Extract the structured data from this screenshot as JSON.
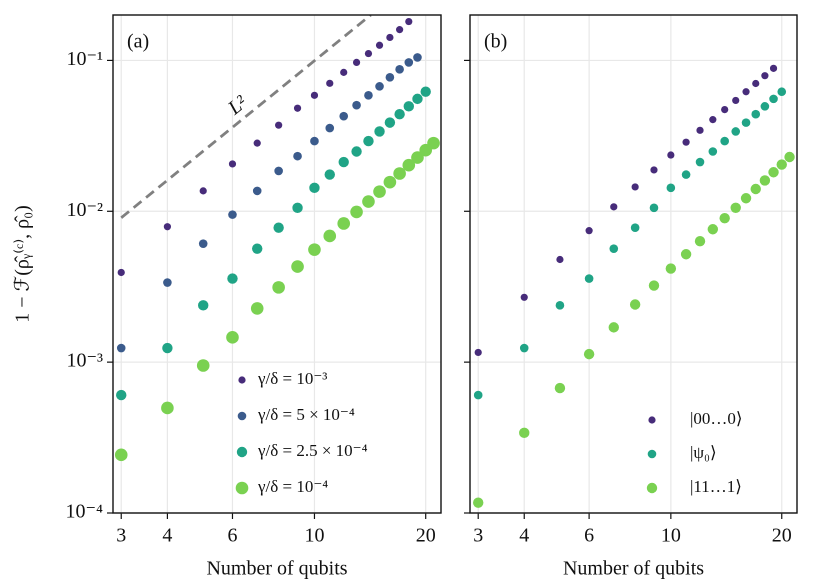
{
  "chart_data": [
    {
      "type": "scatter",
      "panel_label": "(a)",
      "xlabel": "Number of qubits",
      "ylabel": "1 − ℱ(ρ̂ᵧ⁽ᶜ⁾, ρ̂₀)",
      "log_x": true,
      "log_y": true,
      "grid": true,
      "legend": "lower right",
      "xlim": [
        2.85,
        22
      ],
      "ylim": [
        0.0001,
        0.2
      ],
      "xticks": [
        3,
        4,
        6,
        10,
        20
      ],
      "yticks": [
        {
          "value": 0.0001,
          "label": "10⁻⁴"
        },
        {
          "value": 0.001,
          "label": "10⁻³"
        },
        {
          "value": 0.01,
          "label": "10⁻²"
        },
        {
          "value": 0.1,
          "label": "10⁻¹"
        }
      ],
      "reference_line": {
        "label": "L²",
        "color": "#808080",
        "x": [
          3,
          14.2
        ],
        "y": [
          0.00906,
          0.2
        ]
      },
      "series": [
        {
          "name": "γ/δ = 10⁻³",
          "color": "#472c7a",
          "x": [
            3,
            4,
            5,
            6,
            7,
            8,
            9,
            10,
            11,
            12,
            13,
            14,
            15,
            16,
            17,
            18
          ],
          "values": [
            0.00393,
            0.0079,
            0.01365,
            0.0206,
            0.0283,
            0.0372,
            0.0482,
            0.0587,
            0.0705,
            0.0833,
            0.097,
            0.111,
            0.126,
            0.142,
            0.16,
            0.181
          ]
        },
        {
          "name": "γ/δ = 5 × 10⁻⁴",
          "color": "#3b5b8c",
          "x": [
            3,
            4,
            5,
            6,
            7,
            8,
            9,
            10,
            11,
            12,
            13,
            14,
            15,
            16,
            17,
            18,
            19
          ],
          "values": [
            0.00124,
            0.00337,
            0.0061,
            0.0095,
            0.01365,
            0.0185,
            0.0232,
            0.0292,
            0.0356,
            0.0427,
            0.0505,
            0.0587,
            0.0673,
            0.0773,
            0.0873,
            0.097,
            0.1047
          ]
        },
        {
          "name": "γ/δ = 2.5 × 10⁻⁴",
          "color": "#20a486",
          "x": [
            3,
            4,
            5,
            6,
            7,
            8,
            9,
            10,
            11,
            12,
            13,
            14,
            15,
            16,
            17,
            18,
            19,
            20
          ],
          "values": [
            0.000605,
            0.00124,
            0.00238,
            0.00358,
            0.00565,
            0.00778,
            0.01054,
            0.0143,
            0.0175,
            0.0212,
            0.0249,
            0.0292,
            0.0338,
            0.0387,
            0.044,
            0.0496,
            0.0556,
            0.062
          ]
        },
        {
          "name": "γ/δ = 10⁻⁴",
          "color": "#7ad151",
          "x": [
            3,
            4,
            5,
            6,
            7,
            8,
            9,
            10,
            11,
            12,
            13,
            14,
            15,
            16,
            17,
            18,
            19,
            20,
            21
          ],
          "values": [
            0.000243,
            0.000497,
            0.00095,
            0.00146,
            0.00227,
            0.00313,
            0.0043,
            0.00557,
            0.00686,
            0.0083,
            0.0099,
            0.0116,
            0.0135,
            0.0156,
            0.0178,
            0.0202,
            0.0227,
            0.0254,
            0.0283
          ]
        }
      ]
    },
    {
      "type": "scatter",
      "panel_label": "(b)",
      "xlabel": "Number of qubits",
      "log_x": true,
      "log_y": true,
      "grid": true,
      "legend": "lower right",
      "xlim": [
        2.85,
        22
      ],
      "ylim": [
        0.0001,
        0.2
      ],
      "xticks": [
        3,
        4,
        6,
        10,
        20
      ],
      "yticks": [
        0.0001,
        0.001,
        0.01,
        0.1
      ],
      "series": [
        {
          "name": "|00…0⟩",
          "color": "#472c7a",
          "x": [
            3,
            4,
            5,
            6,
            7,
            8,
            9,
            10,
            11,
            12,
            13,
            14,
            15,
            16,
            17,
            18,
            19
          ],
          "values": [
            0.00116,
            0.00269,
            0.00479,
            0.00744,
            0.0107,
            0.0145,
            0.0188,
            0.0236,
            0.0287,
            0.0344,
            0.0405,
            0.0472,
            0.0543,
            0.062,
            0.0703,
            0.0792,
            0.0886
          ]
        },
        {
          "name": "|ψ₀⟩",
          "color": "#20a486",
          "x": [
            3,
            4,
            5,
            6,
            7,
            8,
            9,
            10,
            11,
            12,
            13,
            14,
            15,
            16,
            17,
            18,
            19,
            20
          ],
          "values": [
            0.000605,
            0.00124,
            0.00238,
            0.00358,
            0.00565,
            0.00778,
            0.01054,
            0.0143,
            0.0175,
            0.0212,
            0.0249,
            0.0292,
            0.0338,
            0.0387,
            0.044,
            0.0496,
            0.0556,
            0.062
          ]
        },
        {
          "name": "|11…1⟩",
          "color": "#7ad151",
          "x": [
            3,
            4,
            5,
            6,
            7,
            8,
            9,
            10,
            11,
            12,
            13,
            14,
            15,
            16,
            17,
            18,
            19,
            20,
            21
          ],
          "values": [
            0.000117,
            0.00034,
            0.000673,
            0.00113,
            0.0017,
            0.00241,
            0.00322,
            0.00417,
            0.00519,
            0.00633,
            0.0076,
            0.009,
            0.01055,
            0.0122,
            0.01405,
            0.016,
            0.01814,
            0.0204,
            0.0229
          ]
        }
      ]
    }
  ]
}
